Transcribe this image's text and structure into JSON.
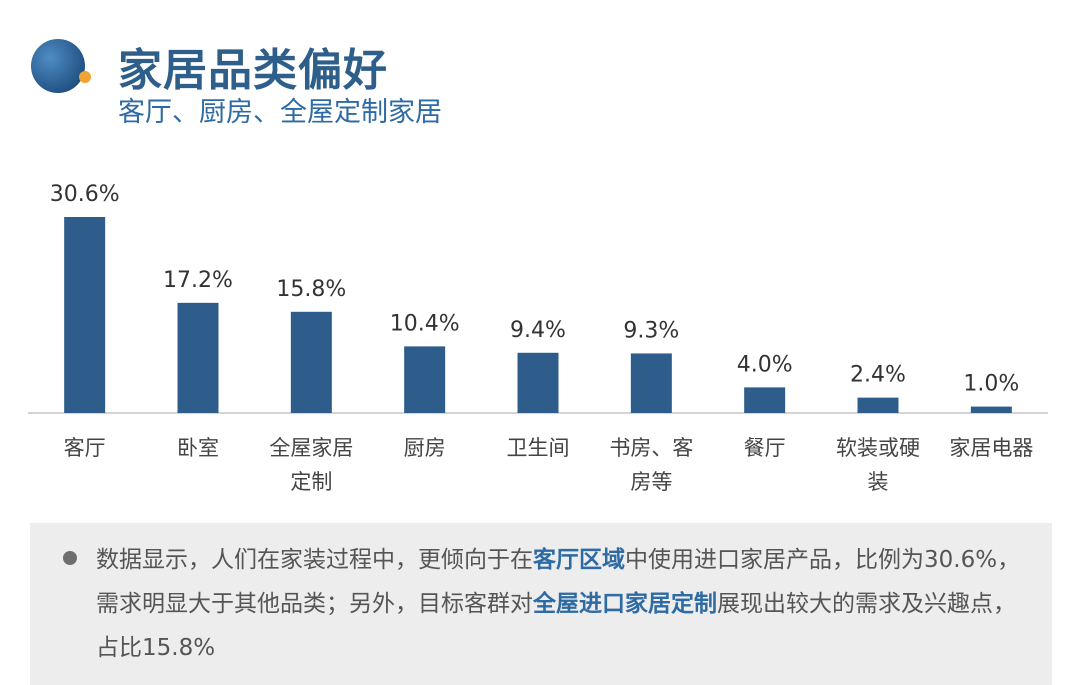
{
  "header": {
    "title": "家居品类偏好",
    "subtitle": "客厅、厨房、全屋定制家居"
  },
  "colors": {
    "bar": "#2e5d8c",
    "title": "#2e5f8a",
    "subtitle": "#2e6aa3",
    "highlight": "#2e6aa3",
    "note_background": "#ededed"
  },
  "chart_data": {
    "type": "bar",
    "categories": [
      "客厅",
      "卧室",
      "全屋家居定制",
      "厨房",
      "卫生间",
      "书房、客房等",
      "餐厅",
      "软装或硬装",
      "家居电器"
    ],
    "category_lines": [
      [
        "客厅"
      ],
      [
        "卧室"
      ],
      [
        "全屋家居",
        "定制"
      ],
      [
        "厨房"
      ],
      [
        "卫生间"
      ],
      [
        "书房、客",
        "房等"
      ],
      [
        "餐厅"
      ],
      [
        "软装或硬",
        "装"
      ],
      [
        "家居电器"
      ]
    ],
    "values": [
      30.6,
      17.2,
      15.8,
      10.4,
      9.4,
      9.3,
      4.0,
      2.4,
      1.0
    ],
    "value_labels": [
      "30.6%",
      "17.2%",
      "15.8%",
      "10.4%",
      "9.4%",
      "9.3%",
      "4.0%",
      "2.4%",
      "1.0%"
    ],
    "ylim": [
      0,
      30.6
    ],
    "grid": false,
    "legend": "none"
  },
  "note": {
    "segments": [
      {
        "text": "数据显示，人们在家装过程中，更倾向于在",
        "highlight": false
      },
      {
        "text": "客厅区域",
        "highlight": true
      },
      {
        "text": "中使用进口家居产品，比例为30.6%，需求明显大于其他品类；另外，目标客群对",
        "highlight": false
      },
      {
        "text": "全屋进口家居定制",
        "highlight": true
      },
      {
        "text": "展现出较大的需求及兴趣点，占比15.8%",
        "highlight": false
      }
    ]
  }
}
